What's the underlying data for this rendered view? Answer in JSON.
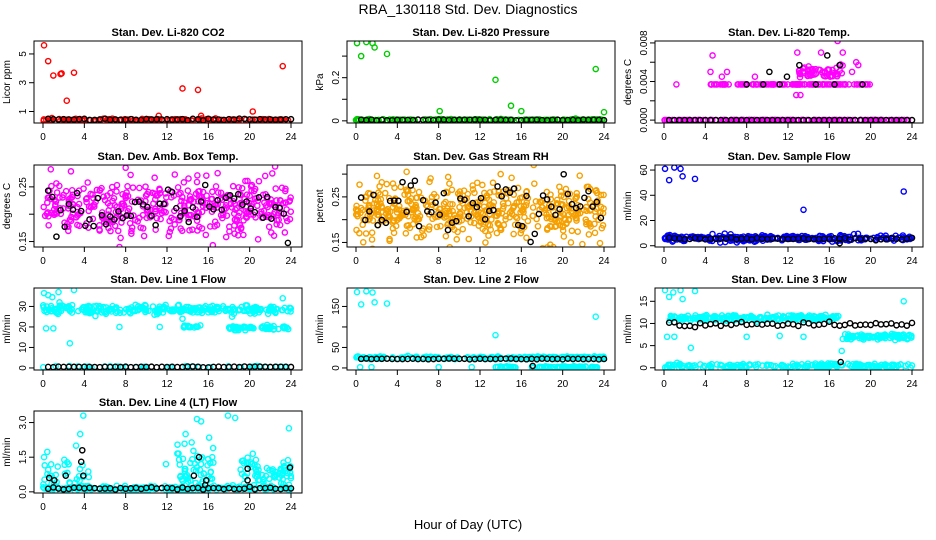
{
  "title": "RBA_130118  Std. Dev. Diagnostics",
  "xlabel": "Hour of Day (UTC)",
  "chart_data": [
    {
      "type": "scatter",
      "title": "Stan. Dev. Li-820 CO2",
      "ylabel": "Licor ppm",
      "color": "#ff0000",
      "xlim": [
        0,
        24
      ],
      "xticks": [
        0,
        4,
        8,
        12,
        16,
        20,
        24
      ],
      "ylim": [
        0.2,
        5.9
      ],
      "yticks": [
        1,
        3,
        5
      ],
      "minor_yticks": [],
      "bands": [
        {
          "x": [
            0,
            24
          ],
          "y": 0.4,
          "sd": 0.05,
          "n": 160
        }
      ],
      "outliers": [
        [
          0.1,
          5.6
        ],
        [
          0.5,
          4.5
        ],
        [
          1.0,
          3.5
        ],
        [
          1.7,
          3.6
        ],
        [
          1.8,
          3.65
        ],
        [
          2.3,
          1.75
        ],
        [
          3.0,
          3.7
        ],
        [
          11.2,
          0.7
        ],
        [
          13.5,
          2.6
        ],
        [
          15.0,
          2.5
        ],
        [
          15.3,
          0.7
        ],
        [
          20.3,
          1.0
        ],
        [
          23.2,
          4.15
        ]
      ],
      "black": {
        "x": [
          0.5,
          24
        ],
        "step": 0.5,
        "y": 0.45,
        "sd": 0.03
      }
    },
    {
      "type": "scatter",
      "title": "Stan. Dev. Li-820 Pressure",
      "ylabel": "kPa",
      "color": "#00cc00",
      "xlim": [
        0,
        24
      ],
      "xticks": [
        0,
        4,
        8,
        12,
        16,
        20,
        24
      ],
      "ylim": [
        -0.01,
        0.37
      ],
      "yticks": [
        0.0,
        0.2
      ],
      "minor_yticks": [
        0.1,
        0.3
      ],
      "bands": [
        {
          "x": [
            0,
            24
          ],
          "y": 0.005,
          "sd": 0.002,
          "n": 160
        }
      ],
      "outliers": [
        [
          0.1,
          0.36
        ],
        [
          0.5,
          0.3
        ],
        [
          1.0,
          0.365
        ],
        [
          1.6,
          0.36
        ],
        [
          1.8,
          0.34
        ],
        [
          3.0,
          0.31
        ],
        [
          8.1,
          0.045
        ],
        [
          13.5,
          0.19
        ],
        [
          15.0,
          0.07
        ],
        [
          16.0,
          0.045
        ],
        [
          23.2,
          0.24
        ],
        [
          24.0,
          0.04
        ]
      ],
      "black": {
        "x": [
          0.5,
          24
        ],
        "step": 0.5,
        "y": 0.004,
        "sd": 0.001
      }
    },
    {
      "type": "scatter",
      "title": "Stan. Dev. Li-820 Temp.",
      "ylabel": "degrees C",
      "color": "#ff00ff",
      "xlim": [
        0,
        24
      ],
      "xticks": [
        0,
        4,
        8,
        12,
        16,
        20,
        24
      ],
      "ylim": [
        -0.0003,
        0.0082
      ],
      "yticks": [
        "0.000",
        "0.004",
        "0.008"
      ],
      "minor_yticks": [
        0.002,
        0.006
      ],
      "bands": [
        {
          "x": [
            0,
            24
          ],
          "y": 0,
          "sd": 0,
          "n": 160
        },
        {
          "x": [
            4.5,
            20
          ],
          "y": 0.0037,
          "sd": 0,
          "n": 110
        },
        {
          "x": [
            13,
            17.3
          ],
          "y": 0.005,
          "sd": 0.0003,
          "n": 50
        }
      ],
      "outliers": [
        [
          1.2,
          0.0037
        ],
        [
          4.5,
          0.005
        ],
        [
          4.7,
          0.0067
        ],
        [
          5.6,
          0.0045
        ],
        [
          6.1,
          0.005
        ],
        [
          8.8,
          0.0045
        ],
        [
          12.8,
          0.0026
        ],
        [
          13.2,
          0.0026
        ],
        [
          12.9,
          0.007
        ],
        [
          15.2,
          0.007
        ],
        [
          16.8,
          0.0082
        ],
        [
          17.3,
          0.007
        ],
        [
          18.6,
          0.006
        ],
        [
          18.8,
          0.0057
        ],
        [
          18.2,
          0.005
        ]
      ],
      "black": {
        "x": [
          0.5,
          24
        ],
        "step": 0.5,
        "y": 0,
        "sd": 0,
        "extra": [
          [
            8,
            0.0037
          ],
          [
            9.6,
            0.0037
          ],
          [
            10.2,
            0.005
          ],
          [
            11.9,
            0.0045
          ],
          [
            13.1,
            0.0057
          ],
          [
            15.8,
            0.0067
          ],
          [
            17.0,
            0.0057
          ],
          [
            19.2,
            0.0037
          ],
          [
            16.5,
            0.0037
          ],
          [
            14.7,
            0.0037
          ],
          [
            11.2,
            0.0037
          ]
        ]
      }
    },
    {
      "type": "scatter",
      "title": "Stan. Dev. Amb. Box Temp.",
      "ylabel": "degrees C",
      "color": "#ff00ff",
      "xlim": [
        0,
        24
      ],
      "xticks": [
        0,
        4,
        8,
        12,
        16,
        20,
        24
      ],
      "ylim": [
        0.14,
        0.29
      ],
      "yticks": [
        0.15,
        0.25
      ],
      "minor_yticks": [
        0.2
      ],
      "bands": [
        {
          "x": [
            0,
            24
          ],
          "y": 0.21,
          "sd": 0.025,
          "n": 420
        }
      ],
      "outliers": [
        [
          8.0,
          0.285
        ],
        [
          16.9,
          0.275
        ],
        [
          7.4,
          0.14
        ],
        [
          21.5,
          0.27
        ]
      ],
      "black": {
        "x": [
          0.5,
          24
        ],
        "step": 0.4,
        "y": 0.21,
        "sd": 0.022
      }
    },
    {
      "type": "scatter",
      "title": "Stan. Dev. Gas Stream RH",
      "ylabel": "percent",
      "color": "#f5a000",
      "xlim": [
        0,
        24
      ],
      "xticks": [
        0,
        4,
        8,
        12,
        16,
        20,
        24
      ],
      "ylim": [
        0.14,
        0.32
      ],
      "yticks": [
        0.15,
        0.25
      ],
      "minor_yticks": [
        0.2,
        0.3
      ],
      "bands": [
        {
          "x": [
            0,
            24
          ],
          "y": 0.22,
          "sd": 0.03,
          "n": 480
        }
      ],
      "outliers": [
        [
          17.2,
          0.32
        ],
        [
          18.8,
          0.145
        ],
        [
          20.8,
          0.15
        ],
        [
          4.9,
          0.305
        ],
        [
          14.0,
          0.3
        ]
      ],
      "black": {
        "x": [
          0.5,
          24
        ],
        "step": 0.4,
        "y": 0.225,
        "sd": 0.028
      }
    },
    {
      "type": "scatter",
      "title": "Stan. Dev. Sample Flow",
      "ylabel": "ml/min",
      "color": "#0000ff",
      "xlim": [
        0,
        24
      ],
      "xticks": [
        0,
        4,
        8,
        12,
        16,
        20,
        24
      ],
      "ylim": [
        -1,
        64
      ],
      "yticks": [
        0,
        20,
        40,
        60
      ],
      "minor_yticks": [],
      "bands": [
        {
          "x": [
            0,
            24
          ],
          "y": 6,
          "sd": 1.2,
          "n": 260
        }
      ],
      "outliers": [
        [
          0.1,
          61
        ],
        [
          0.5,
          52
        ],
        [
          1.0,
          62
        ],
        [
          1.6,
          61
        ],
        [
          1.8,
          55
        ],
        [
          3.0,
          53
        ],
        [
          13.5,
          28.5
        ],
        [
          23.2,
          43
        ]
      ],
      "black": {
        "x": [
          0.5,
          24
        ],
        "step": 0.5,
        "y": 5.5,
        "sd": 0.4,
        "extra": [
          [
            17,
            2
          ]
        ]
      }
    },
    {
      "type": "scatter",
      "title": "Stan. Dev. Line 1 Flow",
      "ylabel": "ml/min",
      "color": "#00ffff",
      "xlim": [
        0,
        24
      ],
      "xticks": [
        0,
        4,
        8,
        12,
        16,
        20,
        24
      ],
      "ylim": [
        -1,
        39
      ],
      "yticks": [
        0,
        10,
        20,
        30
      ],
      "minor_yticks": [],
      "bands": [
        {
          "x": [
            0,
            24
          ],
          "y": 28.5,
          "sd": 1,
          "n": 260
        },
        {
          "x": [
            18,
            23.8
          ],
          "y": 19.5,
          "sd": 0.6,
          "n": 60
        },
        {
          "x": [
            13.5,
            15.5
          ],
          "y": 20,
          "sd": 0.4,
          "n": 15
        },
        {
          "x": [
            0,
            24
          ],
          "y": 0.5,
          "sd": 0.2,
          "n": 40
        }
      ],
      "outliers": [
        [
          0.1,
          36.5
        ],
        [
          0.5,
          35.5
        ],
        [
          0.9,
          34.5
        ],
        [
          1.5,
          37
        ],
        [
          1.6,
          32
        ],
        [
          3.0,
          38
        ],
        [
          0.3,
          19.3
        ],
        [
          1.0,
          19.3
        ],
        [
          2.6,
          12
        ],
        [
          7.4,
          20
        ],
        [
          11.3,
          20
        ],
        [
          23.2,
          34
        ],
        [
          18.3,
          25
        ],
        [
          13.5,
          24
        ]
      ],
      "black": {
        "x": [
          0.5,
          24
        ],
        "step": 0.5,
        "y": 0.5,
        "sd": 0.1
      }
    },
    {
      "type": "scatter",
      "title": "Stan. Dev. Line 2 Flow",
      "ylabel": "ml/min",
      "color": "#00ffff",
      "xlim": [
        0,
        24
      ],
      "xticks": [
        0,
        4,
        8,
        12,
        16,
        20,
        24
      ],
      "ylim": [
        -5,
        195
      ],
      "yticks": [
        0,
        50,
        150
      ],
      "minor_yticks": [
        100
      ],
      "bands": [
        {
          "x": [
            0,
            24
          ],
          "y": 25,
          "sd": 1.5,
          "n": 180
        },
        {
          "x": [
            17,
            23.5
          ],
          "y": 2,
          "sd": 1,
          "n": 80
        },
        {
          "x": [
            13.5,
            15.5
          ],
          "y": 2,
          "sd": 1,
          "n": 20
        }
      ],
      "outliers": [
        [
          0.1,
          185
        ],
        [
          0.5,
          155
        ],
        [
          1.0,
          187
        ],
        [
          1.6,
          184
        ],
        [
          1.8,
          160
        ],
        [
          3.0,
          157
        ],
        [
          13.5,
          80
        ],
        [
          23.2,
          125
        ],
        [
          8.0,
          2
        ],
        [
          11.2,
          2
        ],
        [
          0.4,
          2
        ],
        [
          1.5,
          2
        ]
      ],
      "black": {
        "x": [
          0.5,
          24
        ],
        "step": 0.5,
        "y": 22,
        "sd": 0.5,
        "extra": [
          [
            17.1,
            5
          ]
        ]
      }
    },
    {
      "type": "scatter",
      "title": "Stan. Dev. Line 3 Flow",
      "ylabel": "ml/min",
      "color": "#00ffff",
      "xlim": [
        0,
        24
      ],
      "xticks": [
        0,
        4,
        8,
        12,
        16,
        20,
        24
      ],
      "ylim": [
        -0.5,
        18
      ],
      "yticks": [
        0,
        5,
        10,
        15
      ],
      "minor_yticks": [],
      "bands": [
        {
          "x": [
            0.5,
            17
          ],
          "y": 11.2,
          "sd": 0.3,
          "n": 200
        },
        {
          "x": [
            17.5,
            24
          ],
          "y": 7,
          "sd": 0.3,
          "n": 90
        },
        {
          "x": [
            0,
            24
          ],
          "y": 0.4,
          "sd": 0.3,
          "n": 200
        }
      ],
      "outliers": [
        [
          0.1,
          17.5
        ],
        [
          0.5,
          16
        ],
        [
          0.9,
          17
        ],
        [
          1.6,
          17.5
        ],
        [
          1.8,
          15.5
        ],
        [
          3.0,
          17.3
        ],
        [
          0.3,
          7
        ],
        [
          1.0,
          7
        ],
        [
          2.6,
          4.5
        ],
        [
          8.0,
          7
        ],
        [
          11.2,
          7.2
        ],
        [
          13.5,
          7
        ],
        [
          17.2,
          3.8
        ],
        [
          17.3,
          6.5
        ],
        [
          23.2,
          15
        ]
      ],
      "black": {
        "x": [
          0.5,
          24
        ],
        "step": 0.5,
        "y": 9.8,
        "sd": 0.25,
        "extra": [
          [
            17.1,
            1.3
          ]
        ]
      }
    },
    {
      "type": "scatter",
      "title": "Stan. Dev. Line 4 (LT) Flow",
      "ylabel": "ml/min",
      "color": "#00ffff",
      "xlim": [
        0,
        24
      ],
      "xticks": [
        0,
        4,
        8,
        12,
        16,
        20,
        24
      ],
      "ylim": [
        -0.05,
        3.5
      ],
      "yticks": [
        "0.0",
        "1.5",
        "3.0"
      ],
      "minor_yticks": [],
      "bands": [
        {
          "x": [
            0,
            24
          ],
          "y": 0.15,
          "sd": 0.05,
          "n": 200
        },
        {
          "x": [
            0,
            4.5
          ],
          "y": 0.6,
          "sd": 0.4,
          "n": 50
        },
        {
          "x": [
            13,
            16.5
          ],
          "y": 0.9,
          "sd": 0.6,
          "n": 60
        },
        {
          "x": [
            19,
            24
          ],
          "y": 0.8,
          "sd": 0.35,
          "n": 70
        }
      ],
      "outliers": [
        [
          0.1,
          1.5
        ],
        [
          3.9,
          3.3
        ],
        [
          3.6,
          2.5
        ],
        [
          3.2,
          2.0
        ],
        [
          11.9,
          1.2
        ],
        [
          13.8,
          2.5
        ],
        [
          14.9,
          3.15
        ],
        [
          15.3,
          3.05
        ],
        [
          17.9,
          3.3
        ],
        [
          18.6,
          3.2
        ],
        [
          20.3,
          1.65
        ],
        [
          23.8,
          2.75
        ]
      ],
      "black": {
        "x": [
          0.5,
          24
        ],
        "step": 0.5,
        "y": 0.15,
        "sd": 0.03,
        "extra": [
          [
            0.6,
            0.6
          ],
          [
            1.1,
            0.5
          ],
          [
            2.2,
            0.7
          ],
          [
            3.8,
            1.8
          ],
          [
            3.7,
            1.3
          ],
          [
            3.9,
            0.7
          ],
          [
            14.6,
            0.7
          ],
          [
            15.1,
            1.5
          ],
          [
            15.8,
            0.5
          ],
          [
            15.7,
            0.3
          ],
          [
            19.8,
            1.0
          ],
          [
            19.8,
            0.5
          ],
          [
            23.9,
            1.05
          ]
        ]
      }
    }
  ]
}
